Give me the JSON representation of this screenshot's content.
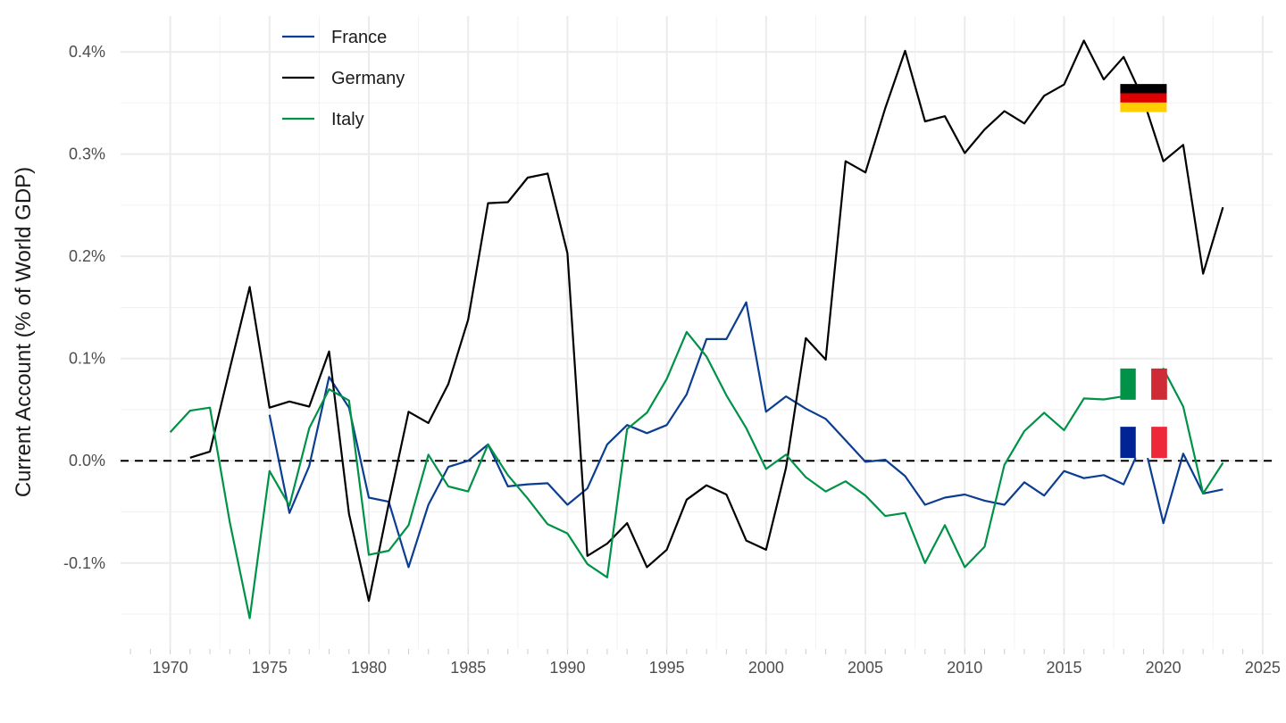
{
  "chart_data": {
    "type": "line",
    "title": "",
    "xlabel": "",
    "ylabel": "Current Account (% of World GDP)",
    "xlim": [
      1967.5,
      2025.5
    ],
    "ylim": [
      -0.184,
      0.435
    ],
    "x_ticks": [
      1970,
      1975,
      1980,
      1985,
      1990,
      1995,
      2000,
      2005,
      2010,
      2015,
      2020,
      2025
    ],
    "x_tick_labels": [
      "1970",
      "1975",
      "1980",
      "1985",
      "1990",
      "1995",
      "2000",
      "2005",
      "2010",
      "2015",
      "2020",
      "2025"
    ],
    "y_ticks": [
      -0.1,
      0.0,
      0.1,
      0.2,
      0.3,
      0.4
    ],
    "y_tick_labels": [
      "-0.1%",
      "0.0%",
      "0.1%",
      "0.2%",
      "0.3%",
      "0.4%"
    ],
    "grid": true,
    "reference_line": {
      "y": 0,
      "style": "dashed",
      "color": "#000000"
    },
    "legend_position": "top-left",
    "series": [
      {
        "name": "France",
        "color": "#0b3d91",
        "x": [
          1975,
          1976,
          1977,
          1978,
          1979,
          1980,
          1981,
          1982,
          1983,
          1984,
          1985,
          1986,
          1987,
          1988,
          1989,
          1990,
          1991,
          1992,
          1993,
          1994,
          1995,
          1996,
          1997,
          1998,
          1999,
          2000,
          2001,
          2002,
          2003,
          2004,
          2005,
          2006,
          2007,
          2008,
          2009,
          2010,
          2011,
          2012,
          2013,
          2014,
          2015,
          2016,
          2017,
          2018,
          2019,
          2020,
          2021,
          2022,
          2023
        ],
        "values": [
          0.045,
          -0.051,
          -0.005,
          0.082,
          0.052,
          -0.036,
          -0.04,
          -0.104,
          -0.043,
          -0.006,
          0.0,
          0.016,
          -0.025,
          -0.023,
          -0.022,
          -0.043,
          -0.027,
          0.016,
          0.035,
          0.027,
          0.035,
          0.065,
          0.119,
          0.119,
          0.155,
          0.048,
          0.063,
          0.051,
          0.041,
          0.02,
          -0.001,
          0.001,
          -0.015,
          -0.043,
          -0.036,
          -0.033,
          -0.039,
          -0.043,
          -0.021,
          -0.034,
          -0.01,
          -0.017,
          -0.014,
          -0.023,
          0.02,
          -0.061,
          0.007,
          -0.032,
          -0.028
        ]
      },
      {
        "name": "Germany",
        "color": "#000000",
        "x": [
          1971,
          1972,
          1973,
          1974,
          1975,
          1976,
          1977,
          1978,
          1979,
          1980,
          1981,
          1982,
          1983,
          1984,
          1985,
          1986,
          1987,
          1988,
          1989,
          1990,
          1991,
          1992,
          1993,
          1994,
          1995,
          1996,
          1997,
          1998,
          1999,
          2000,
          2001,
          2002,
          2003,
          2004,
          2005,
          2006,
          2007,
          2008,
          2009,
          2010,
          2011,
          2012,
          2013,
          2014,
          2015,
          2016,
          2017,
          2018,
          2019,
          2020,
          2021,
          2022,
          2023
        ],
        "values": [
          0.003,
          0.009,
          0.09,
          0.17,
          0.052,
          0.058,
          0.053,
          0.107,
          -0.052,
          -0.137,
          -0.042,
          0.048,
          0.037,
          0.075,
          0.138,
          0.252,
          0.253,
          0.277,
          0.281,
          0.203,
          -0.093,
          -0.081,
          -0.061,
          -0.104,
          -0.087,
          -0.038,
          -0.024,
          -0.033,
          -0.078,
          -0.087,
          -0.007,
          0.12,
          0.099,
          0.293,
          0.282,
          0.345,
          0.401,
          0.332,
          0.337,
          0.301,
          0.324,
          0.342,
          0.33,
          0.357,
          0.368,
          0.411,
          0.373,
          0.395,
          0.353,
          0.293,
          0.309,
          0.183,
          0.248
        ]
      },
      {
        "name": "Italy",
        "color": "#009246",
        "x": [
          1970,
          1971,
          1972,
          1973,
          1974,
          1975,
          1976,
          1977,
          1978,
          1979,
          1980,
          1981,
          1982,
          1983,
          1984,
          1985,
          1986,
          1987,
          1988,
          1989,
          1990,
          1991,
          1992,
          1993,
          1994,
          1995,
          1996,
          1997,
          1998,
          1999,
          2000,
          2001,
          2002,
          2003,
          2004,
          2005,
          2006,
          2007,
          2008,
          2009,
          2010,
          2011,
          2012,
          2013,
          2014,
          2015,
          2016,
          2017,
          2018,
          2019,
          2020,
          2021,
          2022,
          2023
        ],
        "values": [
          0.028,
          0.049,
          0.052,
          -0.06,
          -0.154,
          -0.01,
          -0.044,
          0.032,
          0.07,
          0.059,
          -0.092,
          -0.088,
          -0.063,
          0.006,
          -0.025,
          -0.03,
          0.016,
          -0.014,
          -0.037,
          -0.062,
          -0.071,
          -0.101,
          -0.114,
          0.031,
          0.047,
          0.08,
          0.126,
          0.102,
          0.064,
          0.032,
          -0.008,
          0.006,
          -0.016,
          -0.03,
          -0.02,
          -0.034,
          -0.054,
          -0.051,
          -0.1,
          -0.063,
          -0.104,
          -0.084,
          -0.004,
          0.029,
          0.047,
          0.03,
          0.061,
          0.06,
          0.063,
          0.068,
          0.09,
          0.053,
          -0.032,
          -0.002
        ]
      }
    ],
    "flags": [
      {
        "country": "Germany",
        "x": 2019,
        "y": 0.355,
        "stripes": "horizontal",
        "colors": [
          "#000000",
          "#dd0000",
          "#ffce00"
        ]
      },
      {
        "country": "Italy",
        "x": 2019,
        "y": 0.075,
        "stripes": "vertical",
        "colors": [
          "#009246",
          "#ffffff",
          "#ce2b37"
        ]
      },
      {
        "country": "France",
        "x": 2019,
        "y": 0.018,
        "stripes": "vertical",
        "colors": [
          "#002395",
          "#ffffff",
          "#ed2939"
        ]
      }
    ]
  }
}
